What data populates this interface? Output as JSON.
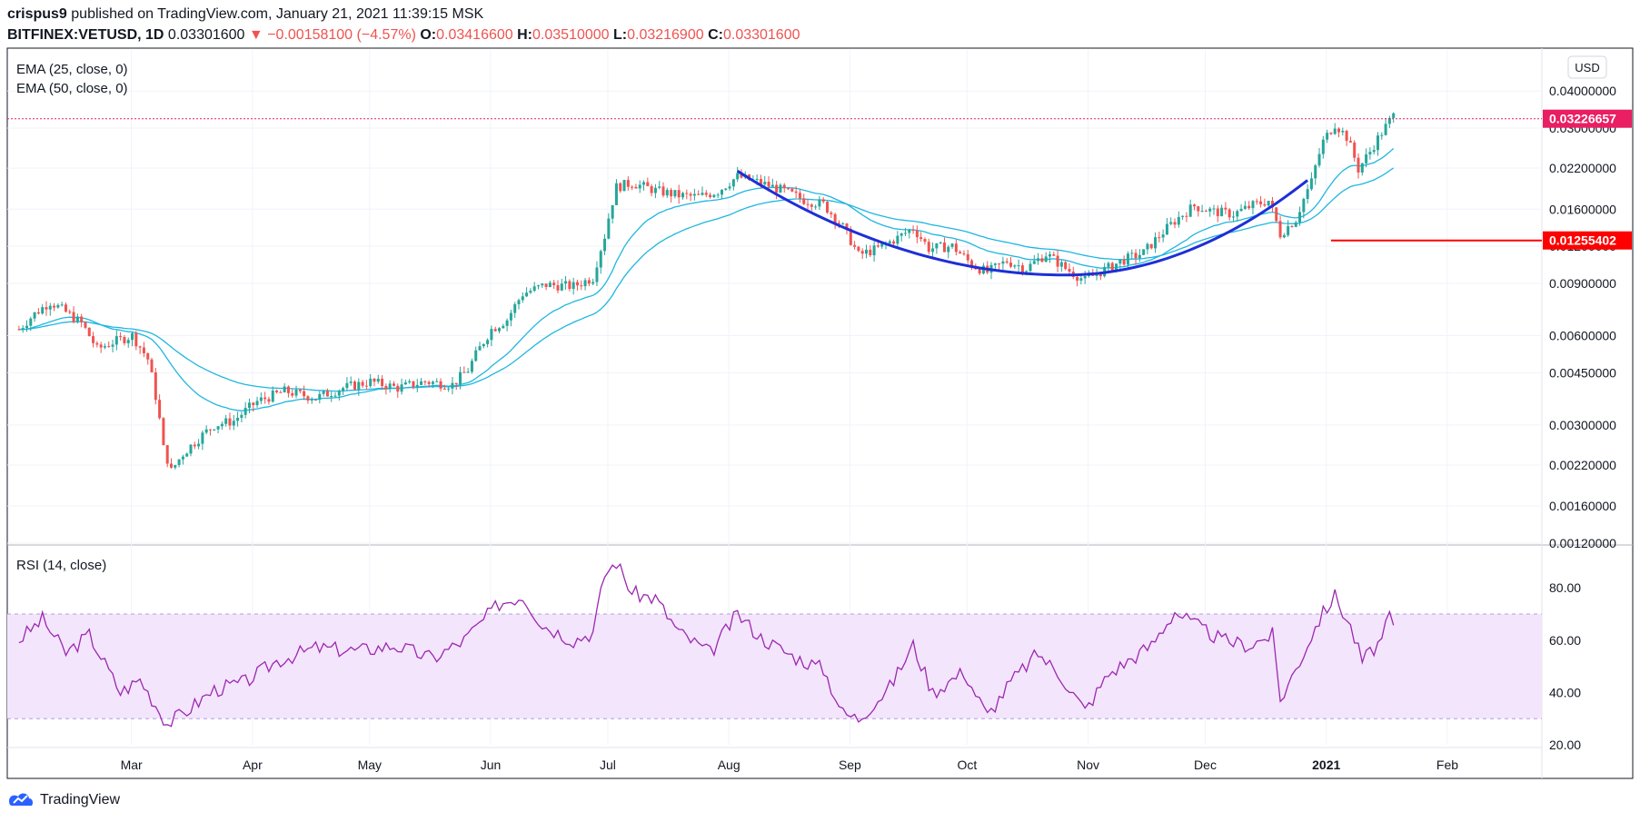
{
  "header": {
    "publisher": "crispus9",
    "published_text": "published on TradingView.com, January 21, 2021 11:39:15 MSK"
  },
  "symbol": {
    "name": "BITFINEX:VETUSD, 1D",
    "last": "0.03301600",
    "change": "−0.00158100 (−4.57%)",
    "o_label": "O:",
    "o": "0.03416600",
    "h_label": "H:",
    "h": "0.03510000",
    "l_label": "L:",
    "l": "0.03216900",
    "c_label": "C:",
    "c": "0.03301600"
  },
  "indicators": {
    "ema25": "EMA (25, close, 0)",
    "ema50": "EMA (50, close, 0)",
    "rsi": "RSI (14, close)"
  },
  "currency_button": "USD",
  "footer": {
    "brand": "TradingView"
  },
  "colors": {
    "up": "#26a69a",
    "down": "#ef5350",
    "ema": "#1fb6e0",
    "cup": "#1e2fd6",
    "rsi": "#9c27b0",
    "rsi_band": "#f3e5fc",
    "price_tag": "#e91e63",
    "level_tag": "#ff0000"
  },
  "chart_data": [
    {
      "type": "candlestick",
      "title": "BITFINEX:VETUSD, 1D",
      "y_scale": "log",
      "y_ticks": [
        "0.04000000",
        "0.03000000",
        "0.02200000",
        "0.01600000",
        "0.01200000",
        "0.00900000",
        "0.00600000",
        "0.00450000",
        "0.00300000",
        "0.00220000",
        "0.00160000",
        "0.00120000"
      ],
      "x_ticks": [
        "Mar",
        "Apr",
        "May",
        "Jun",
        "Jul",
        "Aug",
        "Sep",
        "Oct",
        "Nov",
        "Dec",
        "2021",
        "Feb"
      ],
      "ylim": [
        0.0012,
        0.055
      ],
      "price_tags": [
        {
          "label": "0.03226657",
          "value": 0.03226657
        },
        {
          "label": "0.01255402",
          "value": 0.01255402
        }
      ],
      "ema_periods": [
        25,
        50
      ],
      "price_series": [
        [
          "2020-02-04",
          0.0063
        ],
        [
          "2020-02-08",
          0.0071
        ],
        [
          "2020-02-12",
          0.0078
        ],
        [
          "2020-02-16",
          0.0072
        ],
        [
          "2020-02-20",
          0.0066
        ],
        [
          "2020-02-24",
          0.0054
        ],
        [
          "2020-02-28",
          0.0057
        ],
        [
          "2020-03-04",
          0.006
        ],
        [
          "2020-03-08",
          0.005
        ],
        [
          "2020-03-12",
          0.0025
        ],
        [
          "2020-03-14",
          0.0021
        ],
        [
          "2020-03-17",
          0.0024
        ],
        [
          "2020-03-21",
          0.0027
        ],
        [
          "2020-03-25",
          0.003
        ],
        [
          "2020-03-30",
          0.0031
        ],
        [
          "2020-04-05",
          0.0036
        ],
        [
          "2020-04-12",
          0.0039
        ],
        [
          "2020-04-20",
          0.0037
        ],
        [
          "2020-04-27",
          0.004
        ],
        [
          "2020-05-04",
          0.0042
        ],
        [
          "2020-05-11",
          0.004
        ],
        [
          "2020-05-18",
          0.0042
        ],
        [
          "2020-05-25",
          0.0041
        ],
        [
          "2020-05-29",
          0.0046
        ],
        [
          "2020-06-04",
          0.0063
        ],
        [
          "2020-06-08",
          0.0068
        ],
        [
          "2020-06-12",
          0.0083
        ],
        [
          "2020-06-18",
          0.0089
        ],
        [
          "2020-06-25",
          0.0088
        ],
        [
          "2020-06-30",
          0.0094
        ],
        [
          "2020-07-03",
          0.013
        ],
        [
          "2020-07-06",
          0.019
        ],
        [
          "2020-07-10",
          0.0196
        ],
        [
          "2020-07-16",
          0.0185
        ],
        [
          "2020-07-22",
          0.0178
        ],
        [
          "2020-07-27",
          0.0176
        ],
        [
          "2020-08-01",
          0.0184
        ],
        [
          "2020-08-06",
          0.0206
        ],
        [
          "2020-08-12",
          0.0196
        ],
        [
          "2020-08-18",
          0.0184
        ],
        [
          "2020-08-23",
          0.0172
        ],
        [
          "2020-08-28",
          0.0166
        ],
        [
          "2020-09-02",
          0.0139
        ],
        [
          "2020-09-06",
          0.0112
        ],
        [
          "2020-09-11",
          0.0118
        ],
        [
          "2020-09-16",
          0.0128
        ],
        [
          "2020-09-20",
          0.0138
        ],
        [
          "2020-09-24",
          0.0118
        ],
        [
          "2020-09-30",
          0.012
        ],
        [
          "2020-10-05",
          0.0104
        ],
        [
          "2020-10-09",
          0.0098
        ],
        [
          "2020-10-14",
          0.0107
        ],
        [
          "2020-10-19",
          0.0101
        ],
        [
          "2020-10-24",
          0.0113
        ],
        [
          "2020-10-29",
          0.0101
        ],
        [
          "2020-11-03",
          0.0092
        ],
        [
          "2020-11-08",
          0.01
        ],
        [
          "2020-11-13",
          0.0108
        ],
        [
          "2020-11-18",
          0.0114
        ],
        [
          "2020-11-22",
          0.013
        ],
        [
          "2020-11-27",
          0.015
        ],
        [
          "2020-12-01",
          0.0164
        ],
        [
          "2020-12-06",
          0.0157
        ],
        [
          "2020-12-11",
          0.0154
        ],
        [
          "2020-12-16",
          0.0165
        ],
        [
          "2020-12-20",
          0.0171
        ],
        [
          "2020-12-23",
          0.0132
        ],
        [
          "2020-12-27",
          0.0148
        ],
        [
          "2020-12-31",
          0.0198
        ],
        [
          "2021-01-03",
          0.027
        ],
        [
          "2021-01-06",
          0.031
        ],
        [
          "2021-01-09",
          0.028
        ],
        [
          "2021-01-12",
          0.0218
        ],
        [
          "2021-01-15",
          0.025
        ],
        [
          "2021-01-18",
          0.029
        ],
        [
          "2021-01-21",
          0.033
        ]
      ]
    },
    {
      "type": "line",
      "title": "RSI (14, close)",
      "y_ticks": [
        "80.00",
        "60.00",
        "40.00",
        "20.00"
      ],
      "ylim": [
        20,
        95
      ],
      "bands": [
        30,
        70
      ],
      "rsi_series": [
        [
          "2020-02-04",
          60
        ],
        [
          "2020-02-10",
          68
        ],
        [
          "2020-02-16",
          55
        ],
        [
          "2020-02-22",
          62
        ],
        [
          "2020-03-01",
          40
        ],
        [
          "2020-03-06",
          45
        ],
        [
          "2020-03-13",
          28
        ],
        [
          "2020-03-18",
          33
        ],
        [
          "2020-03-25",
          41
        ],
        [
          "2020-04-02",
          44
        ],
        [
          "2020-04-10",
          52
        ],
        [
          "2020-04-20",
          57
        ],
        [
          "2020-05-01",
          56
        ],
        [
          "2020-05-10",
          58
        ],
        [
          "2020-05-20",
          53
        ],
        [
          "2020-05-28",
          60
        ],
        [
          "2020-06-06",
          74
        ],
        [
          "2020-06-12",
          77
        ],
        [
          "2020-06-17",
          66
        ],
        [
          "2020-06-25",
          60
        ],
        [
          "2020-06-30",
          63
        ],
        [
          "2020-07-03",
          85
        ],
        [
          "2020-07-06",
          90
        ],
        [
          "2020-07-10",
          78
        ],
        [
          "2020-07-16",
          76
        ],
        [
          "2020-07-22",
          63
        ],
        [
          "2020-07-30",
          55
        ],
        [
          "2020-08-06",
          70
        ],
        [
          "2020-08-12",
          61
        ],
        [
          "2020-08-20",
          54
        ],
        [
          "2020-08-28",
          49
        ],
        [
          "2020-09-02",
          32
        ],
        [
          "2020-09-06",
          30
        ],
        [
          "2020-09-14",
          42
        ],
        [
          "2020-09-20",
          58
        ],
        [
          "2020-09-25",
          40
        ],
        [
          "2020-10-03",
          48
        ],
        [
          "2020-10-09",
          31
        ],
        [
          "2020-10-15",
          44
        ],
        [
          "2020-10-22",
          55
        ],
        [
          "2020-10-28",
          46
        ],
        [
          "2020-11-03",
          33
        ],
        [
          "2020-11-09",
          47
        ],
        [
          "2020-11-14",
          52
        ],
        [
          "2020-11-20",
          58
        ],
        [
          "2020-11-26",
          71
        ],
        [
          "2020-12-01",
          66
        ],
        [
          "2020-12-08",
          60
        ],
        [
          "2020-12-15",
          58
        ],
        [
          "2020-12-21",
          62
        ],
        [
          "2020-12-23",
          37
        ],
        [
          "2020-12-28",
          52
        ],
        [
          "2021-01-02",
          68
        ],
        [
          "2021-01-06",
          77
        ],
        [
          "2021-01-10",
          65
        ],
        [
          "2021-01-13",
          52
        ],
        [
          "2021-01-18",
          60
        ],
        [
          "2021-01-20",
          69
        ],
        [
          "2021-01-21",
          65
        ]
      ]
    }
  ]
}
